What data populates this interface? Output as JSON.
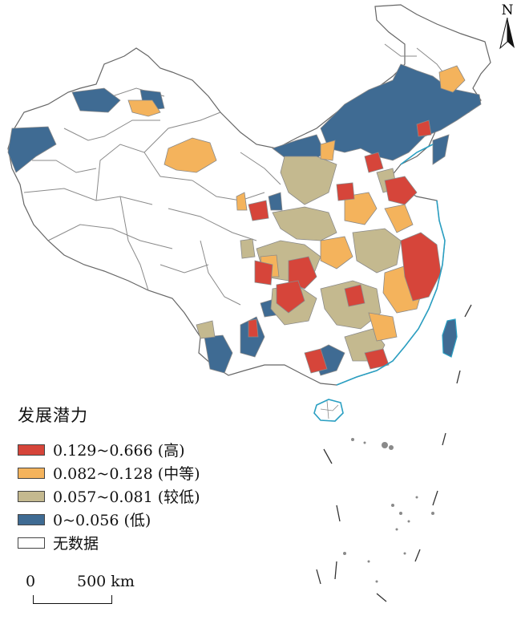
{
  "legend": {
    "title": "发展潜力",
    "items": [
      {
        "label": "0.129~0.666 (高)",
        "color": "#d6453a"
      },
      {
        "label": "0.082~0.128 (中等)",
        "color": "#f4b35c"
      },
      {
        "label": "0.057~0.081 (较低)",
        "color": "#c4b98f"
      },
      {
        "label": "0~0.056 (低)",
        "color": "#3f6b93"
      },
      {
        "label": "无数据",
        "color": "#ffffff"
      }
    ]
  },
  "scale_bar": {
    "start": "0",
    "end": "500 km"
  },
  "north_arrow": {
    "label": "N",
    "icon": "north-arrow-icon"
  },
  "colors": {
    "border": "#8a8a8a",
    "coast": "#2a9fc2",
    "outline": "#555555"
  }
}
